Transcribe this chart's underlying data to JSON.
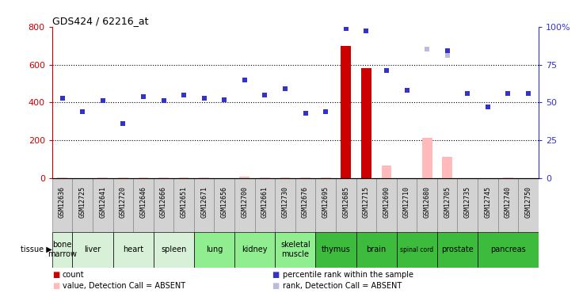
{
  "title": "GDS424 / 62216_at",
  "samples": [
    "GSM12636",
    "GSM12725",
    "GSM12641",
    "GSM12720",
    "GSM12646",
    "GSM12666",
    "GSM12651",
    "GSM12671",
    "GSM12656",
    "GSM12700",
    "GSM12661",
    "GSM12730",
    "GSM12676",
    "GSM12695",
    "GSM12685",
    "GSM12715",
    "GSM12690",
    "GSM12710",
    "GSM12680",
    "GSM12705",
    "GSM12735",
    "GSM12745",
    "GSM12740",
    "GSM12750"
  ],
  "tissues": [
    {
      "name": "bone\nmarrow",
      "sample_indices": [
        0
      ],
      "color": "#d8f0d8"
    },
    {
      "name": "liver",
      "sample_indices": [
        1,
        2
      ],
      "color": "#d8f0d8"
    },
    {
      "name": "heart",
      "sample_indices": [
        3,
        4
      ],
      "color": "#d8f0d8"
    },
    {
      "name": "spleen",
      "sample_indices": [
        5,
        6
      ],
      "color": "#d8f0d8"
    },
    {
      "name": "lung",
      "sample_indices": [
        7,
        8
      ],
      "color": "#90ee90"
    },
    {
      "name": "kidney",
      "sample_indices": [
        9,
        10
      ],
      "color": "#90ee90"
    },
    {
      "name": "skeletal\nmuscle",
      "sample_indices": [
        11,
        12
      ],
      "color": "#90ee90"
    },
    {
      "name": "thymus",
      "sample_indices": [
        13,
        14
      ],
      "color": "#3dbb3d"
    },
    {
      "name": "brain",
      "sample_indices": [
        15,
        16
      ],
      "color": "#3dbb3d"
    },
    {
      "name": "spinal cord",
      "sample_indices": [
        17,
        18
      ],
      "color": "#3dbb3d"
    },
    {
      "name": "prostate",
      "sample_indices": [
        19,
        20
      ],
      "color": "#3dbb3d"
    },
    {
      "name": "pancreas",
      "sample_indices": [
        21,
        22,
        23
      ],
      "color": "#3dbb3d"
    }
  ],
  "count_values": [
    0,
    0,
    0,
    0,
    0,
    0,
    0,
    0,
    0,
    0,
    0,
    0,
    0,
    0,
    700,
    580,
    0,
    0,
    0,
    0,
    0,
    0,
    0,
    0
  ],
  "count_absent_values": [
    5,
    0,
    5,
    5,
    5,
    5,
    5,
    5,
    0,
    10,
    5,
    5,
    5,
    5,
    0,
    0,
    65,
    0,
    215,
    115,
    0,
    0,
    5,
    0
  ],
  "rank_present": [
    53,
    44,
    51,
    36,
    54,
    51,
    55,
    53,
    52,
    65,
    55,
    59,
    43,
    44,
    99,
    97,
    71,
    58,
    0,
    84,
    56,
    47,
    56,
    56
  ],
  "rank_absent": [
    0,
    0,
    0,
    0,
    0,
    0,
    0,
    0,
    0,
    0,
    0,
    0,
    0,
    0,
    0,
    0,
    0,
    0,
    85,
    81,
    0,
    0,
    0,
    0
  ],
  "ylim_left": [
    0,
    800
  ],
  "ylim_right": [
    0,
    100
  ],
  "y_ticks_left": [
    0,
    200,
    400,
    600,
    800
  ],
  "y_ticks_right": [
    0,
    25,
    50,
    75,
    100
  ],
  "colors": {
    "count": "#cc0000",
    "rank_present": "#3333cc",
    "count_absent": "#ffbbbb",
    "rank_absent": "#bbbbdd",
    "tick_left": "#cc0000",
    "tick_right": "#3333cc",
    "sample_box_bg": "#d3d3d3",
    "sample_box_border": "#888888"
  },
  "legend_items": [
    {
      "label": "count",
      "color": "#cc0000"
    },
    {
      "label": "percentile rank within the sample",
      "color": "#3333cc"
    },
    {
      "label": "value, Detection Call = ABSENT",
      "color": "#ffbbbb"
    },
    {
      "label": "rank, Detection Call = ABSENT",
      "color": "#bbbbdd"
    }
  ]
}
